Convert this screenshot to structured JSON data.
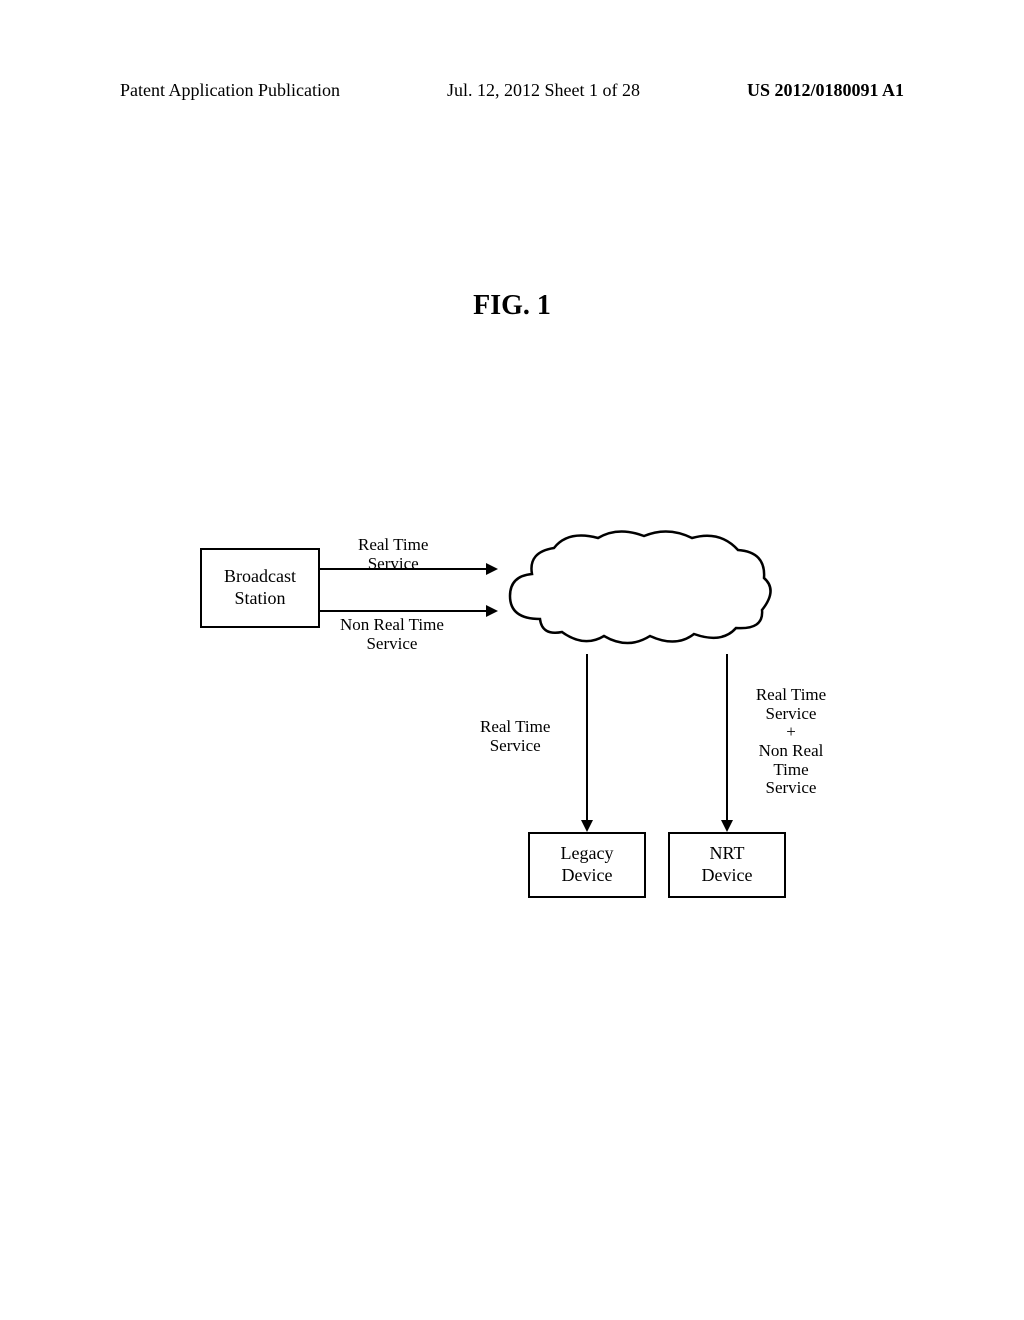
{
  "header": {
    "left": "Patent Application Publication",
    "center": "Jul. 12, 2012  Sheet 1 of 28",
    "right": "US 2012/0180091 A1"
  },
  "figure_title": "FIG. 1",
  "diagram": {
    "broadcast_station": "Broadcast\nStation",
    "real_time_service": "Real Time\nService",
    "non_real_time_service": "Non Real Time\nService",
    "real_time_service_legacy": "Real Time\nService",
    "right_label": "Real Time\nService\n+\nNon Real Time\nService",
    "legacy_device": "Legacy\nDevice",
    "nrt_device": "NRT\nDevice"
  }
}
